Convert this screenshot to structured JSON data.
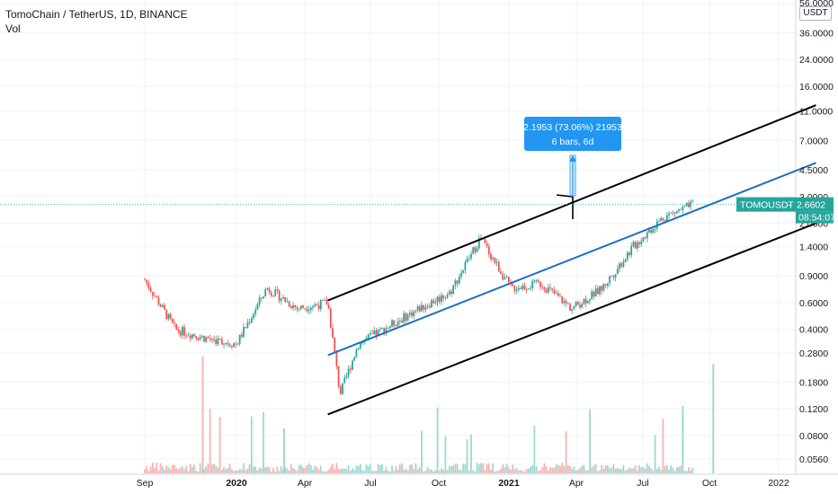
{
  "header": {
    "title": "TomoChain / TetherUS, 1D, BINANCE",
    "volume_label": "Vol"
  },
  "price_scale": {
    "currency_badge": "USDT",
    "top_label": "56.0000",
    "labels": [
      "36.0000",
      "24.0000",
      "16.0000",
      "11.0000",
      "7.0000",
      "4.5000",
      "3.0000",
      "2.0000",
      "1.4000",
      "0.9000",
      "0.6000",
      "0.4000",
      "0.2800",
      "0.1800",
      "0.1200",
      "0.0800",
      "0.0560"
    ],
    "current_tag": {
      "symbol": "TOMOUSDT",
      "price": "2.6602",
      "countdown": "08:54:07",
      "color": "#26a69a"
    }
  },
  "time_axis": {
    "labels": [
      {
        "text": "Sep",
        "bold": false
      },
      {
        "text": "2020",
        "bold": true
      },
      {
        "text": "Apr",
        "bold": false
      },
      {
        "text": "Jul",
        "bold": false
      },
      {
        "text": "Oct",
        "bold": false
      },
      {
        "text": "2021",
        "bold": true
      },
      {
        "text": "Apr",
        "bold": false
      },
      {
        "text": "Jul",
        "bold": false
      },
      {
        "text": "Oct",
        "bold": false
      },
      {
        "text": "2022",
        "bold": false
      }
    ]
  },
  "measure_tool": {
    "line1": "2.1953 (73.06%) 21953",
    "line2": "6 bars, 6d",
    "color": "#2196f3"
  },
  "colors": {
    "up": "#26a69a",
    "down": "#ef5350",
    "channel": "#000000",
    "midline": "#1e6fbf"
  },
  "chart_data": {
    "type": "candlestick",
    "symbol": "TOMOUSDT",
    "exchange": "BINANCE",
    "interval": "1D",
    "y_scale": "log",
    "ylim": [
      0.05,
      56
    ],
    "x_range": [
      "2019-09",
      "2022-01"
    ],
    "last_price": 2.6602,
    "approx_close_path": [
      {
        "date": "2019-09",
        "close": 0.85
      },
      {
        "date": "2019-10",
        "close": 0.4
      },
      {
        "date": "2019-11",
        "close": 0.35
      },
      {
        "date": "2019-12",
        "close": 0.32
      },
      {
        "date": "2020-01",
        "close": 0.75
      },
      {
        "date": "2020-02",
        "close": 0.55
      },
      {
        "date": "2020-03",
        "close": 0.6
      },
      {
        "date": "2020-03-13",
        "close": 0.15
      },
      {
        "date": "2020-04",
        "close": 0.32
      },
      {
        "date": "2020-05",
        "close": 0.42
      },
      {
        "date": "2020-06",
        "close": 0.55
      },
      {
        "date": "2020-07",
        "close": 0.7
      },
      {
        "date": "2020-08",
        "close": 1.6
      },
      {
        "date": "2020-09",
        "close": 0.75
      },
      {
        "date": "2020-10",
        "close": 0.8
      },
      {
        "date": "2020-11",
        "close": 0.55
      },
      {
        "date": "2020-12",
        "close": 0.75
      },
      {
        "date": "2021-01",
        "close": 1.4
      },
      {
        "date": "2021-02",
        "close": 2.2
      },
      {
        "date": "2021-03",
        "close": 2.66
      }
    ],
    "drawings": {
      "channel_upper": [
        {
          "date": "2020-03",
          "price": 0.62
        },
        {
          "date": "2021-07",
          "price": 12.0
        }
      ],
      "channel_mid": [
        {
          "date": "2020-03",
          "price": 0.27
        },
        {
          "date": "2021-07",
          "price": 5.0
        }
      ],
      "channel_lower": [
        {
          "date": "2020-03",
          "price": 0.11
        },
        {
          "date": "2021-07",
          "price": 2.0
        }
      ]
    },
    "grid": true
  }
}
